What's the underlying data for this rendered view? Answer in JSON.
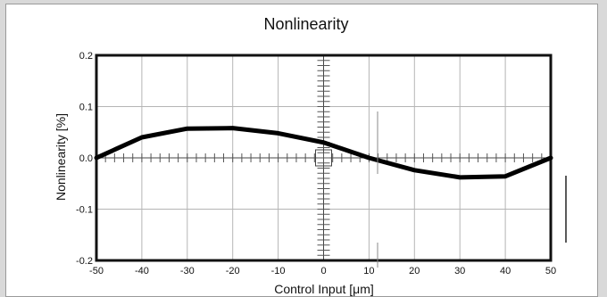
{
  "chart_data": {
    "type": "line",
    "title": "Nonlinearity",
    "xlabel": "Control Input [μm]",
    "ylabel": "Nonlinearity [%]",
    "xlim": [
      -50,
      50
    ],
    "ylim": [
      -0.2,
      0.2
    ],
    "x_ticks": [
      "-50",
      "-40",
      "-30",
      "-20",
      "-10",
      "0",
      "10",
      "20",
      "30",
      "40",
      "50"
    ],
    "y_ticks": [
      "0.2",
      "0.1",
      "0.0",
      "-0.1",
      "-0.2"
    ],
    "grid": true,
    "series": [
      {
        "x": [
          -50,
          -40,
          -30,
          -20,
          -10,
          0,
          10,
          20,
          30,
          40,
          50
        ],
        "y": [
          0.0,
          0.04,
          0.057,
          0.058,
          0.048,
          0.03,
          0.0,
          -0.024,
          -0.038,
          -0.036,
          0.0
        ]
      }
    ]
  }
}
